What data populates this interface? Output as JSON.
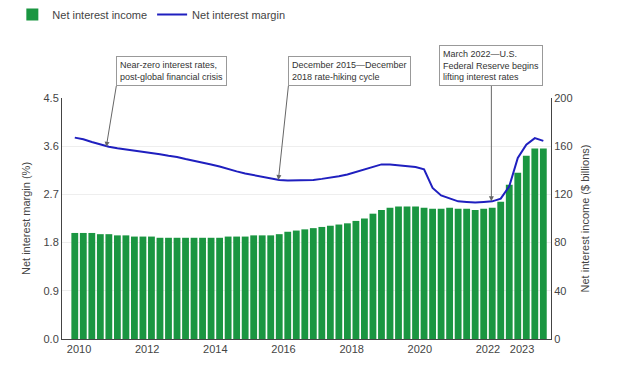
{
  "chart_data": {
    "type": "bar",
    "x": [
      2009.875,
      2010.125,
      2010.375,
      2010.625,
      2010.875,
      2011.125,
      2011.375,
      2011.625,
      2011.875,
      2012.125,
      2012.375,
      2012.625,
      2012.875,
      2013.125,
      2013.375,
      2013.625,
      2013.875,
      2014.125,
      2014.375,
      2014.625,
      2014.875,
      2015.125,
      2015.375,
      2015.625,
      2015.875,
      2016.125,
      2016.375,
      2016.625,
      2016.875,
      2017.125,
      2017.375,
      2017.625,
      2017.875,
      2018.125,
      2018.375,
      2018.625,
      2018.875,
      2019.125,
      2019.375,
      2019.625,
      2019.875,
      2020.125,
      2020.375,
      2020.625,
      2020.875,
      2021.125,
      2021.375,
      2021.625,
      2021.875,
      2022.125,
      2022.375,
      2022.625,
      2022.875,
      2023.125,
      2023.375,
      2023.625
    ],
    "series": [
      {
        "name": "Net interest income",
        "type": "bar",
        "color": "#1a9641",
        "axis": "y2",
        "values": [
          88,
          88,
          88,
          87,
          87,
          86,
          86,
          85,
          85,
          85,
          84,
          84,
          84,
          84,
          84,
          84,
          84,
          84,
          85,
          85,
          85,
          86,
          86,
          86,
          87,
          89,
          90,
          91,
          92,
          93,
          94,
          95,
          96,
          98,
          100,
          104,
          107,
          109,
          110,
          110,
          110,
          109,
          108,
          108,
          109,
          108,
          108,
          107,
          108,
          109,
          114,
          128,
          138,
          152,
          158,
          158
        ]
      },
      {
        "name": "Net interest margin",
        "type": "line",
        "color": "#1f1fbf",
        "values": [
          3.76,
          3.73,
          3.68,
          3.63,
          3.59,
          3.56,
          3.54,
          3.52,
          3.5,
          3.47,
          3.45,
          3.42,
          3.4,
          3.36,
          3.33,
          3.3,
          3.26,
          3.22,
          3.17,
          3.13,
          3.09,
          3.06,
          3.02,
          2.99,
          2.97,
          2.96,
          2.96,
          2.96,
          2.97,
          2.99,
          3.01,
          3.04,
          3.07,
          3.12,
          3.17,
          3.21,
          3.26,
          3.26,
          3.24,
          3.22,
          3.21,
          3.17,
          2.82,
          2.68,
          2.62,
          2.57,
          2.56,
          2.55,
          2.56,
          2.57,
          2.62,
          2.85,
          3.38,
          3.63,
          3.75,
          3.7
        ]
      }
    ],
    "xlim": [
      2009.5,
      2023.85
    ],
    "xticks": [
      2010,
      2012,
      2014,
      2016,
      2018,
      2020,
      2022,
      2023
    ],
    "ylim": [
      0.0,
      4.5
    ],
    "yticks": [
      {
        "value": 0.0,
        "label": "0.0"
      },
      0.9,
      1.8,
      2.7,
      3.6,
      4.5
    ],
    "y2lim": [
      0,
      200
    ],
    "y2ticks": [
      0,
      40,
      80,
      120,
      160,
      200
    ],
    "ylabel": "Net interest margin (%)",
    "y2label": "Net interest income ($ billions)",
    "grid": true,
    "legend": "upper left",
    "annotations": [
      {
        "text": "Near-zero interest rates,\npost-global financial crisis",
        "x": 2010.8,
        "y": 3.59
      },
      {
        "text": "December 2015—December\n2018 rate-hiking cycle",
        "x": 2015.85,
        "y": 2.97
      },
      {
        "text": "March 2022—U.S.\nFederal Reserve begins\nlifting interest rates",
        "x": 2022.1,
        "y": 2.57
      }
    ]
  }
}
